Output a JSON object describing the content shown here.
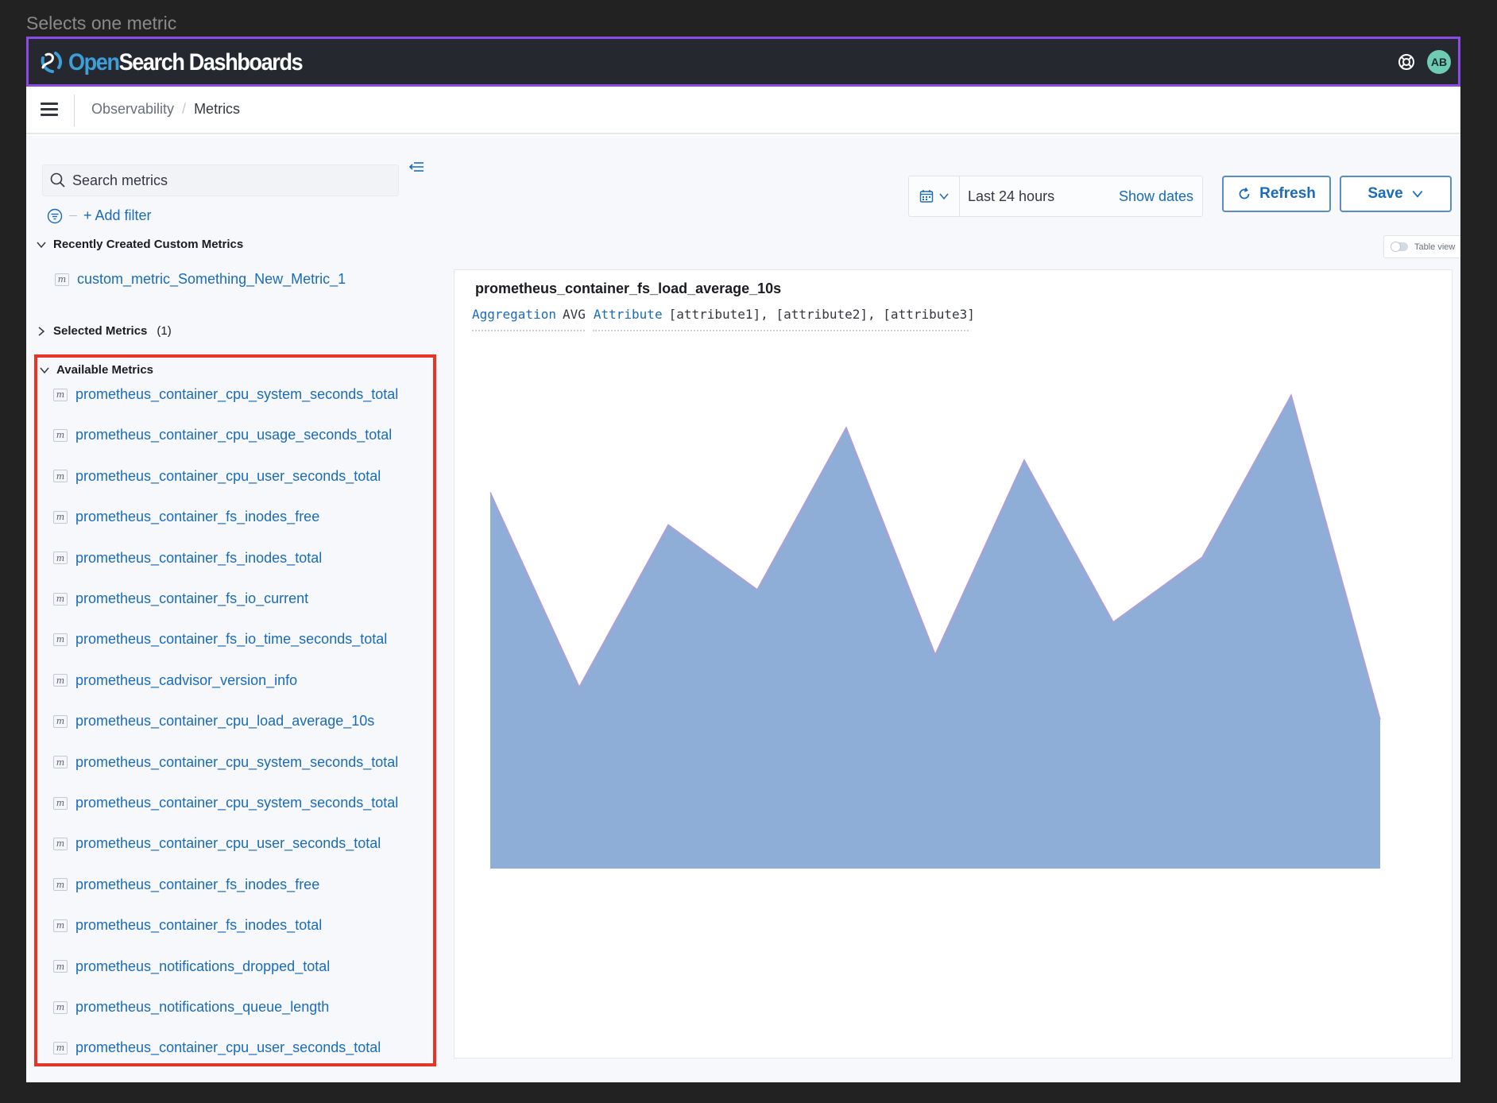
{
  "caption": "Selects one metric",
  "header": {
    "logo_open": "Open",
    "logo_rest": "Search Dashboards",
    "avatar_initials": "AB",
    "accent_color": "#8d4be6"
  },
  "breadcrumb": {
    "parent": "Observability",
    "separator": "/",
    "current": "Metrics"
  },
  "sidebar": {
    "search_placeholder": "Search metrics",
    "add_filter_label": "+ Add filter",
    "recent": {
      "title": "Recently Created Custom Metrics",
      "items": [
        "custom_metric_Something_New_Metric_1"
      ]
    },
    "selected": {
      "title": "Selected Metrics",
      "count": "(1)"
    },
    "available": {
      "title": "Available Metrics",
      "highlight_color": "#e53527",
      "items": [
        "prometheus_container_cpu_system_seconds_total",
        "prometheus_container_cpu_usage_seconds_total",
        "prometheus_container_cpu_user_seconds_total",
        "prometheus_container_fs_inodes_free",
        "prometheus_container_fs_inodes_total",
        "prometheus_container_fs_io_current",
        "prometheus_container_fs_io_time_seconds_total",
        "prometheus_cadvisor_version_info",
        "prometheus_container_cpu_load_average_10s",
        "prometheus_container_cpu_system_seconds_total",
        "prometheus_container_cpu_system_seconds_total",
        "prometheus_container_cpu_user_seconds_total",
        "prometheus_container_fs_inodes_free",
        "prometheus_container_fs_inodes_total",
        "prometheus_notifications_dropped_total",
        "prometheus_notifications_queue_length",
        "prometheus_container_cpu_user_seconds_total"
      ],
      "badge": "m"
    }
  },
  "toolbar": {
    "time_range": "Last 24 hours",
    "show_dates": "Show dates",
    "refresh_label": "Refresh",
    "save_label": "Save",
    "table_view_label": "Table view"
  },
  "panel": {
    "title": "prometheus_container_fs_load_average_10s",
    "aggregation_keyword": "Aggregation",
    "aggregation_value": "AVG",
    "attribute_keyword": "Attribute",
    "attribute_value": "[attribute1], [attribute2], [attribute3]"
  },
  "chart_data": {
    "type": "area",
    "title": "",
    "xlabel": "",
    "ylabel": "",
    "x": [
      0,
      1,
      2,
      3,
      4,
      5,
      6,
      7,
      8,
      9,
      10
    ],
    "values": [
      58,
      28,
      53,
      43,
      68,
      33,
      63,
      38,
      48,
      73,
      23
    ],
    "ylim": [
      0,
      80
    ],
    "grid": false,
    "fill_color": "#8eaed8",
    "line_color": "#b89bd6"
  }
}
